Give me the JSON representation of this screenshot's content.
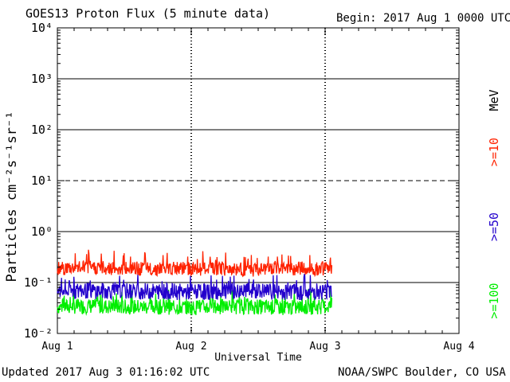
{
  "header": {
    "title": "GOES13 Proton Flux (5 minute data)",
    "begin": "Begin: 2017 Aug 1 0000 UTC"
  },
  "footer": {
    "updated": "Updated 2017 Aug  3 01:16:02 UTC",
    "source": "NOAA/SWPC Boulder, CO USA"
  },
  "colors": {
    "ge10": "#ff2200",
    "ge50": "#2200cc",
    "ge100": "#00ee00",
    "axis": "#000000"
  },
  "chart_data": {
    "type": "line",
    "title": "GOES13 Proton Flux (5 minute data)",
    "xlabel": "Universal Time",
    "ylabel": "Particles cm⁻²s⁻¹sr⁻¹",
    "y_scale": "log",
    "ylim": [
      0.01,
      10000
    ],
    "y_ticks": [
      {
        "value": 10000,
        "label": "10⁴"
      },
      {
        "value": 1000,
        "label": "10³"
      },
      {
        "value": 100,
        "label": "10²"
      },
      {
        "value": 10,
        "label": "10¹"
      },
      {
        "value": 1,
        "label": "10⁰"
      },
      {
        "value": 0.1,
        "label": "10⁻¹"
      },
      {
        "value": 0.01,
        "label": "10⁻²"
      }
    ],
    "reference_lines": [
      {
        "value": 1000,
        "style": "solid"
      },
      {
        "value": 100,
        "style": "solid"
      },
      {
        "value": 10,
        "style": "dashed"
      },
      {
        "value": 1,
        "style": "solid"
      },
      {
        "value": 0.1,
        "style": "solid"
      }
    ],
    "xlim_days": [
      0,
      3
    ],
    "x_ticks": [
      {
        "value": 0,
        "label": "Aug 1"
      },
      {
        "value": 1,
        "label": "Aug 2"
      },
      {
        "value": 2,
        "label": "Aug 3"
      },
      {
        "value": 3,
        "label": "Aug 4"
      }
    ],
    "legend": {
      "placement": "right",
      "unit_label": "MeV",
      "entries": [
        ">=10",
        ">=50",
        ">=100"
      ]
    },
    "series": [
      {
        "name": ">=10 MeV",
        "color_key": "ge10",
        "x_days": [
          0,
          0.25,
          0.5,
          0.75,
          1.0,
          1.25,
          1.5,
          1.75,
          2.0,
          2.05
        ],
        "values": [
          0.17,
          0.18,
          0.17,
          0.17,
          0.17,
          0.17,
          0.16,
          0.17,
          0.17,
          0.18
        ]
      },
      {
        "name": ">=50 MeV",
        "color_key": "ge50",
        "x_days": [
          0,
          0.25,
          0.5,
          0.75,
          1.0,
          1.25,
          1.5,
          1.75,
          2.0,
          2.05
        ],
        "values": [
          0.06,
          0.062,
          0.06,
          0.06,
          0.058,
          0.06,
          0.06,
          0.058,
          0.06,
          0.065
        ]
      },
      {
        "name": ">=100 MeV",
        "color_key": "ge100",
        "x_days": [
          0,
          0.25,
          0.5,
          0.75,
          1.0,
          1.25,
          1.5,
          1.75,
          2.0,
          2.05
        ],
        "values": [
          0.03,
          0.031,
          0.03,
          0.03,
          0.029,
          0.03,
          0.03,
          0.029,
          0.03,
          0.032
        ]
      }
    ]
  }
}
